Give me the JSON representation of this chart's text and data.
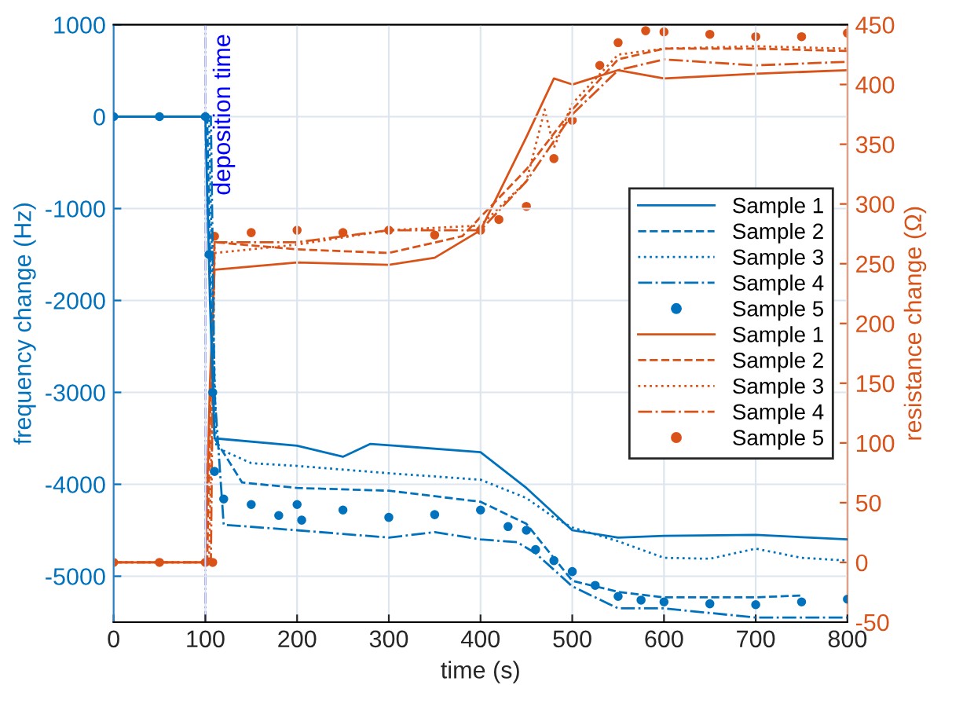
{
  "chart_data": {
    "type": "line",
    "xlabel": "time (s)",
    "ylabel": "frequency change (Hz)",
    "y2label": "resistance change (Ω)",
    "xlim": [
      0,
      800
    ],
    "xticks": [
      0,
      100,
      200,
      300,
      400,
      500,
      600,
      700,
      800
    ],
    "ylim": [
      -5500,
      1000
    ],
    "yticks": [
      -5000,
      -4000,
      -3000,
      -2000,
      -1000,
      0,
      1000
    ],
    "y2lim": [
      -50,
      450
    ],
    "y2ticks": [
      -50,
      0,
      50,
      100,
      150,
      200,
      250,
      300,
      350,
      400,
      450
    ],
    "grid": true,
    "legend": "right",
    "ref_lines": [
      {
        "axis": "x",
        "value": 100,
        "label": "deposition time",
        "color": "#0000ff",
        "line_style": "dashdot"
      }
    ],
    "series": [
      {
        "name": "Sample 1",
        "color": "#0072bd",
        "line_style": "solid",
        "x": [
          0,
          100,
          105,
          110,
          200,
          250,
          280,
          400,
          450,
          500,
          550,
          600,
          700,
          800
        ],
        "values": [
          0,
          0,
          -2000,
          -3500,
          -3580,
          -3700,
          -3560,
          -3650,
          -4040,
          -4500,
          -4580,
          -4560,
          -4550,
          -4600
        ]
      },
      {
        "name": "Sample 2",
        "color": "#0072bd",
        "line_style": "dashed",
        "x": [
          0,
          102,
          106,
          110,
          140,
          200,
          300,
          400,
          450,
          500,
          550,
          600,
          700,
          750
        ],
        "values": [
          0,
          0,
          -2000,
          -3500,
          -3980,
          -4040,
          -4070,
          -4190,
          -4430,
          -5050,
          -5170,
          -5230,
          -5230,
          -5210
        ]
      },
      {
        "name": "Sample 3",
        "color": "#0072bd",
        "line_style": "dotted",
        "x": [
          0,
          104,
          108,
          112,
          150,
          200,
          300,
          400,
          450,
          480,
          500,
          550,
          600,
          650,
          700,
          750,
          800
        ],
        "values": [
          0,
          0,
          -2000,
          -3600,
          -3770,
          -3800,
          -3880,
          -3950,
          -4150,
          -4360,
          -4470,
          -4620,
          -4800,
          -4810,
          -4700,
          -4800,
          -4830
        ]
      },
      {
        "name": "Sample 4",
        "color": "#0072bd",
        "line_style": "dashdot",
        "x": [
          0,
          106,
          110,
          120,
          200,
          300,
          350,
          400,
          440,
          460,
          500,
          550,
          600,
          700,
          800
        ],
        "values": [
          0,
          0,
          -3000,
          -4440,
          -4500,
          -4580,
          -4520,
          -4600,
          -4630,
          -4750,
          -5110,
          -5350,
          -5350,
          -5450,
          -5450
        ]
      },
      {
        "name": "Sample 5",
        "color": "#0072bd",
        "type": "scatter",
        "marker": "circle",
        "x": [
          0,
          50,
          100,
          104,
          108,
          110,
          120,
          150,
          180,
          200,
          205,
          250,
          300,
          350,
          400,
          430,
          450,
          460,
          480,
          500,
          525,
          550,
          575,
          600,
          650,
          700,
          750,
          800
        ],
        "values": [
          0,
          0,
          0,
          -1500,
          -3000,
          -3860,
          -4160,
          -4220,
          -4340,
          -4220,
          -4390,
          -4280,
          -4360,
          -4330,
          -4280,
          -4460,
          -4500,
          -4710,
          -4830,
          -4950,
          -5100,
          -5220,
          -5260,
          -5280,
          -5300,
          -5310,
          -5280,
          -5250
        ]
      },
      {
        "name": "Sample 1",
        "color": "#d95319",
        "line_style": "solid",
        "axis": "y2",
        "x": [
          0,
          100,
          105,
          110,
          200,
          300,
          350,
          400,
          450,
          480,
          500,
          550,
          600,
          700,
          800
        ],
        "values": [
          0,
          0,
          150,
          245,
          251,
          249,
          255,
          278,
          356,
          405,
          400,
          412,
          405,
          409,
          412
        ]
      },
      {
        "name": "Sample 2",
        "color": "#d95319",
        "line_style": "dashed",
        "axis": "y2",
        "x": [
          0,
          102,
          106,
          110,
          200,
          300,
          380,
          450,
          500,
          550,
          600,
          700,
          800
        ],
        "values": [
          0,
          0,
          150,
          268,
          262,
          259,
          273,
          329,
          379,
          421,
          430,
          430,
          428
        ]
      },
      {
        "name": "Sample 3",
        "color": "#d95319",
        "line_style": "dotted",
        "axis": "y2",
        "x": [
          0,
          104,
          108,
          110,
          200,
          300,
          400,
          450,
          470,
          480,
          500,
          550,
          600,
          700,
          800
        ],
        "values": [
          0,
          0,
          150,
          259,
          266,
          278,
          282,
          319,
          379,
          347,
          384,
          425,
          430,
          432,
          430
        ]
      },
      {
        "name": "Sample 4",
        "color": "#d95319",
        "line_style": "dashdot",
        "axis": "y2",
        "x": [
          0,
          106,
          108,
          110,
          200,
          300,
          400,
          450,
          500,
          550,
          600,
          700,
          800
        ],
        "values": [
          0,
          0,
          150,
          268,
          268,
          278,
          278,
          319,
          375,
          412,
          421,
          416,
          419
        ]
      },
      {
        "name": "Sample 5",
        "color": "#d95319",
        "type": "scatter",
        "marker": "circle",
        "axis": "y2",
        "x": [
          0,
          50,
          100,
          108,
          110,
          150,
          200,
          250,
          300,
          350,
          400,
          420,
          450,
          480,
          500,
          530,
          550,
          580,
          600,
          650,
          700,
          750,
          800
        ],
        "values": [
          0,
          0,
          0,
          0,
          273,
          276,
          278,
          276,
          278,
          274,
          278,
          287,
          298,
          338,
          370,
          416,
          435,
          445,
          444,
          442,
          440,
          440,
          443
        ]
      }
    ]
  }
}
